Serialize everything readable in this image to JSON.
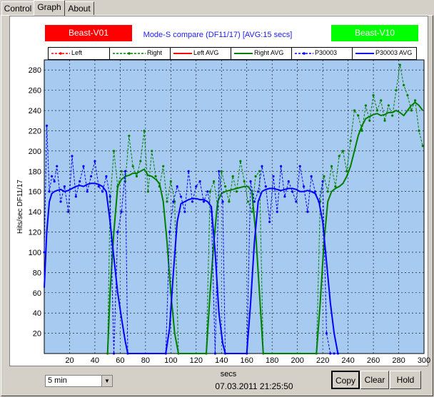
{
  "tabs": [
    {
      "label": "Control"
    },
    {
      "label": "Graph"
    },
    {
      "label": "About"
    }
  ],
  "status": {
    "left": {
      "label": "Beast-V01",
      "color": "#ff0000"
    },
    "right": {
      "label": "Beast-V10",
      "color": "#00ff00"
    }
  },
  "subtitle": "Mode-S compare (DF11/17) [AVG:15 secs]",
  "legend": [
    {
      "label": "Left",
      "color": "#ff0000",
      "style": "dash-points"
    },
    {
      "label": "Right",
      "color": "#008000",
      "style": "dash-points"
    },
    {
      "label": "Left AVG",
      "color": "#ff0000",
      "style": "solid"
    },
    {
      "label": "Right AVG",
      "color": "#008000",
      "style": "solid"
    },
    {
      "label": "P30003",
      "color": "#0000ff",
      "style": "dash-points"
    },
    {
      "label": "P30003 AVG",
      "color": "#0000ff",
      "style": "solid"
    }
  ],
  "controls": {
    "range_select": "5 min",
    "timestamp": "07.03.2011 21:25:50",
    "buttons": [
      {
        "label": "Copy"
      },
      {
        "label": "Clear"
      },
      {
        "label": "Hold"
      }
    ]
  },
  "colors": {
    "plot_bg": "#a6caf0",
    "grid": "#000000"
  },
  "chart_data": {
    "type": "line",
    "xlabel": "secs",
    "ylabel": "Hits/sec DF11/17",
    "xlim": [
      0,
      300
    ],
    "ylim": [
      0,
      290
    ],
    "xticks": [
      20,
      40,
      60,
      80,
      100,
      120,
      140,
      160,
      180,
      200,
      220,
      240,
      260,
      280,
      300
    ],
    "yticks": [
      20,
      40,
      60,
      80,
      100,
      120,
      140,
      160,
      180,
      200,
      220,
      240,
      260,
      280
    ],
    "grid": true,
    "series": [
      {
        "name": "Right",
        "color": "#008000",
        "style": "dash-points",
        "x": [
          50,
          52,
          55,
          58,
          61,
          64,
          67,
          70,
          73,
          76,
          79,
          82,
          85,
          88,
          91,
          94,
          97,
          100,
          103,
          106,
          128,
          131,
          134,
          137,
          140,
          143,
          146,
          149,
          152,
          155,
          158,
          161,
          164,
          167,
          170,
          173,
          215,
          218,
          221,
          224,
          227,
          230,
          233,
          236,
          239,
          242,
          245,
          248,
          251,
          254,
          257,
          260,
          263,
          266,
          269,
          272,
          275,
          278,
          281,
          284,
          287,
          290,
          293,
          296,
          299
        ],
        "y": [
          0,
          150,
          200,
          165,
          180,
          170,
          215,
          185,
          175,
          190,
          220,
          160,
          200,
          175,
          165,
          185,
          150,
          170,
          150,
          0,
          0,
          160,
          170,
          145,
          180,
          165,
          150,
          175,
          160,
          190,
          170,
          150,
          140,
          175,
          180,
          0,
          0,
          150,
          175,
          160,
          185,
          165,
          195,
          200,
          180,
          210,
          240,
          235,
          220,
          245,
          230,
          255,
          240,
          250,
          230,
          245,
          235,
          260,
          285,
          265,
          255,
          240,
          250,
          220,
          205
        ]
      },
      {
        "name": "Right AVG",
        "color": "#008000",
        "style": "solid",
        "x": [
          50,
          52,
          55,
          58,
          61,
          64,
          67,
          70,
          73,
          76,
          79,
          82,
          85,
          88,
          91,
          94,
          97,
          100,
          103,
          106,
          128,
          131,
          134,
          137,
          140,
          143,
          146,
          149,
          152,
          155,
          158,
          161,
          164,
          167,
          170,
          173,
          215,
          218,
          221,
          224,
          227,
          230,
          233,
          236,
          239,
          242,
          245,
          248,
          251,
          254,
          257,
          260,
          263,
          266,
          269,
          272,
          275,
          278,
          281,
          284,
          287,
          290,
          293,
          296,
          299
        ],
        "y": [
          0,
          60,
          120,
          165,
          172,
          175,
          176,
          178,
          178,
          180,
          182,
          176,
          175,
          172,
          168,
          150,
          110,
          60,
          20,
          0,
          0,
          60,
          110,
          150,
          158,
          160,
          161,
          162,
          163,
          164,
          165,
          165,
          160,
          120,
          60,
          0,
          0,
          50,
          110,
          150,
          160,
          163,
          165,
          168,
          175,
          185,
          200,
          215,
          225,
          232,
          234,
          236,
          237,
          235,
          236,
          238,
          238,
          240,
          238,
          235,
          240,
          245,
          248,
          245,
          240
        ]
      },
      {
        "name": "P30003",
        "color": "#0000ff",
        "style": "dash-points",
        "x": [
          0,
          2,
          4,
          6,
          8,
          10,
          13,
          16,
          19,
          22,
          25,
          28,
          31,
          34,
          37,
          40,
          43,
          46,
          49,
          52,
          55,
          58,
          61,
          64,
          66,
          96,
          99,
          102,
          105,
          108,
          111,
          114,
          117,
          120,
          123,
          126,
          129,
          132,
          135,
          138,
          141,
          143,
          160,
          163,
          166,
          169,
          172,
          175,
          178,
          181,
          184,
          187,
          190,
          193,
          196,
          199,
          202,
          205,
          208,
          211,
          214,
          217,
          220,
          223,
          226,
          229,
          232
        ],
        "y": [
          100,
          225,
          160,
          175,
          170,
          185,
          150,
          165,
          140,
          195,
          155,
          170,
          185,
          160,
          175,
          190,
          165,
          160,
          175,
          155,
          0,
          120,
          140,
          180,
          0,
          0,
          120,
          150,
          165,
          155,
          140,
          180,
          150,
          165,
          170,
          150,
          160,
          140,
          0,
          180,
          150,
          0,
          0,
          170,
          150,
          160,
          185,
          165,
          130,
          175,
          140,
          185,
          155,
          170,
          160,
          150,
          185,
          165,
          140,
          175,
          160,
          150,
          170,
          20,
          0,
          0,
          0
        ]
      },
      {
        "name": "P30003 AVG",
        "color": "#0000ff",
        "style": "solid",
        "x": [
          0,
          2,
          4,
          6,
          8,
          10,
          13,
          16,
          19,
          22,
          25,
          28,
          31,
          34,
          37,
          40,
          43,
          46,
          49,
          52,
          55,
          58,
          61,
          64,
          66,
          96,
          99,
          102,
          105,
          108,
          111,
          114,
          117,
          120,
          123,
          126,
          129,
          132,
          135,
          138,
          141,
          143,
          160,
          163,
          166,
          169,
          172,
          175,
          178,
          181,
          184,
          187,
          190,
          193,
          196,
          199,
          202,
          205,
          208,
          211,
          214,
          217,
          220,
          223,
          226,
          229,
          232
        ],
        "y": [
          65,
          120,
          150,
          158,
          160,
          161,
          162,
          160,
          161,
          163,
          165,
          166,
          165,
          167,
          168,
          168,
          167,
          165,
          160,
          130,
          95,
          60,
          35,
          12,
          0,
          0,
          25,
          80,
          130,
          148,
          150,
          152,
          153,
          153,
          152,
          152,
          150,
          145,
          100,
          40,
          10,
          0,
          0,
          50,
          110,
          150,
          160,
          162,
          163,
          163,
          162,
          161,
          162,
          163,
          163,
          162,
          160,
          160,
          161,
          160,
          158,
          150,
          130,
          90,
          50,
          20,
          0
        ]
      }
    ]
  }
}
